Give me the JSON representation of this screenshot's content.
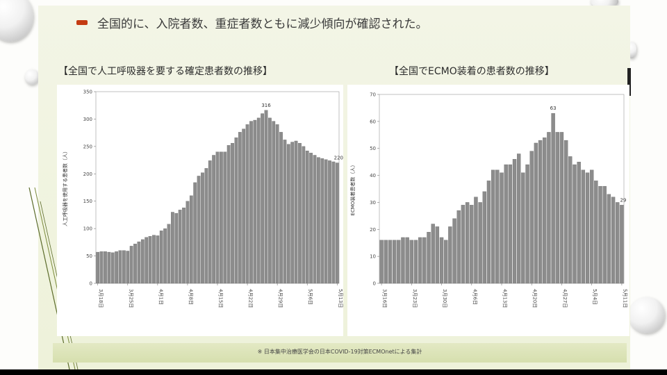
{
  "headline": "全国的に、入院者数、重症者数ともに減少傾向が確認された。",
  "footnote": "※ 日本集中治療医学会の日本COVID-19対策ECMOnetによる集計",
  "colors": {
    "accent": "#c43b12",
    "bar": "#8c8c8c",
    "panel": "#eef2da",
    "band": "#d6dfae"
  },
  "chart_data": [
    {
      "type": "bar",
      "title": "【全国で人工呼吸器を要する確定患者数の推移】",
      "ylabel": "人工呼吸器を使用する患者数（人）",
      "ylim": [
        0,
        350
      ],
      "yticks": [
        "0",
        "50",
        "100",
        "150",
        "200",
        "250",
        "300",
        "350"
      ],
      "xtick_labels": [
        "3月18日",
        "3月25日",
        "4月1日",
        "4月8日",
        "4月15日",
        "4月22日",
        "4月29日",
        "5月6日",
        "5月13日"
      ],
      "annotations": [
        "316",
        "220"
      ],
      "values": [
        57,
        58,
        58,
        57,
        56,
        58,
        60,
        60,
        59,
        68,
        72,
        76,
        80,
        84,
        86,
        88,
        87,
        96,
        100,
        108,
        130,
        128,
        134,
        138,
        150,
        160,
        184,
        196,
        202,
        210,
        224,
        234,
        240,
        240,
        240,
        252,
        256,
        266,
        276,
        282,
        290,
        296,
        298,
        302,
        310,
        316,
        302,
        296,
        290,
        276,
        262,
        254,
        258,
        260,
        256,
        250,
        242,
        238,
        234,
        230,
        228,
        226,
        224,
        222,
        220
      ]
    },
    {
      "type": "bar",
      "title": "【全国でECMO装着の患者数の推移】",
      "ylabel": "ECMO装着患者数（人）",
      "ylim": [
        0,
        70
      ],
      "yticks": [
        "0",
        "10",
        "20",
        "30",
        "40",
        "50",
        "60",
        "70"
      ],
      "xtick_labels": [
        "3月16日",
        "3月23日",
        "3月30日",
        "4月6日",
        "4月13日",
        "4月20日",
        "4月27日",
        "5月4日",
        "5月11日"
      ],
      "annotations": [
        "63",
        "29"
      ],
      "values": [
        16,
        16,
        16,
        16,
        16,
        17,
        17,
        16,
        16,
        17,
        17,
        19,
        22,
        21,
        17,
        16,
        21,
        24,
        27,
        29,
        30,
        29,
        32,
        30,
        34,
        38,
        42,
        42,
        41,
        44,
        44,
        46,
        48,
        41,
        44,
        49,
        52,
        53,
        54,
        56,
        63,
        56,
        56,
        53,
        47,
        44,
        45,
        42,
        41,
        42,
        38,
        36,
        36,
        33,
        32,
        30,
        29
      ]
    }
  ]
}
